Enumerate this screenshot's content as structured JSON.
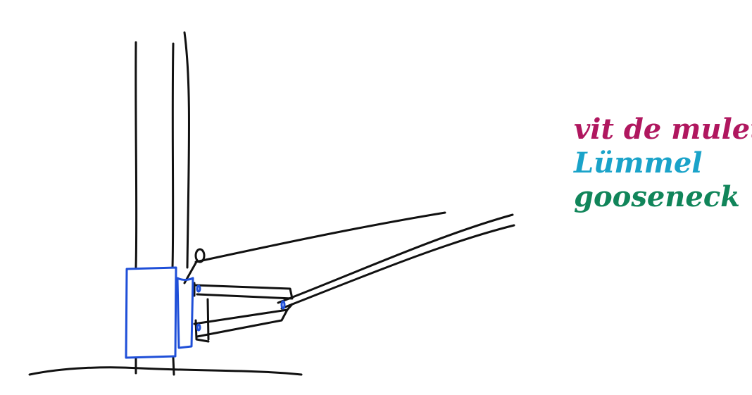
{
  "legend": [
    {
      "label": "vit de mulet",
      "color": "#b0175f"
    },
    {
      "label": "Lümmel",
      "color": "#1aa3c9"
    },
    {
      "label": "gooseneck",
      "color": "#11855a"
    }
  ],
  "colors": {
    "ink": "#111111",
    "fitting": "#1f4fd8"
  }
}
